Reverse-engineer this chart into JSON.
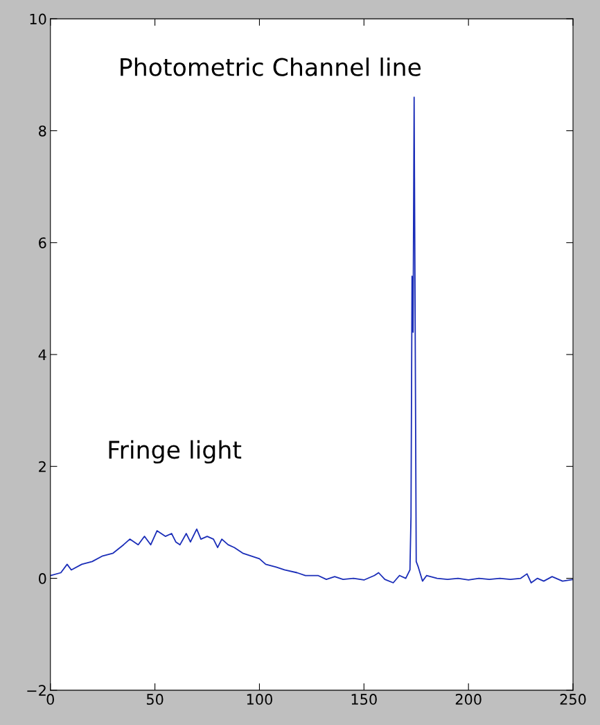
{
  "chart_data": {
    "type": "line",
    "color": "#1a2db8",
    "x": [
      0,
      5,
      8,
      10,
      15,
      20,
      25,
      30,
      35,
      38,
      42,
      45,
      48,
      51,
      55,
      58,
      60,
      62,
      65,
      67,
      70,
      72,
      75,
      78,
      80,
      82,
      85,
      88,
      92,
      96,
      100,
      103,
      108,
      112,
      118,
      122,
      128,
      132,
      136,
      140,
      145,
      150,
      155,
      157,
      160,
      164,
      167,
      170,
      172,
      172.5,
      173,
      173.5,
      174,
      174.5,
      175,
      176,
      178,
      180,
      185,
      190,
      195,
      200,
      205,
      210,
      215,
      220,
      225,
      228,
      230,
      233,
      236,
      240,
      245,
      250
    ],
    "values": [
      0.05,
      0.1,
      0.25,
      0.15,
      0.25,
      0.3,
      0.4,
      0.45,
      0.6,
      0.7,
      0.6,
      0.75,
      0.6,
      0.85,
      0.75,
      0.8,
      0.65,
      0.6,
      0.8,
      0.65,
      0.88,
      0.7,
      0.75,
      0.7,
      0.55,
      0.7,
      0.6,
      0.55,
      0.45,
      0.4,
      0.35,
      0.25,
      0.2,
      0.15,
      0.1,
      0.05,
      0.05,
      -0.02,
      0.03,
      -0.02,
      0.0,
      -0.03,
      0.05,
      0.1,
      -0.02,
      -0.08,
      0.05,
      0.0,
      0.15,
      1.1,
      5.4,
      4.4,
      8.6,
      4.5,
      0.3,
      0.2,
      -0.05,
      0.05,
      0.0,
      -0.02,
      0.0,
      -0.03,
      0.0,
      -0.02,
      0.0,
      -0.02,
      0.0,
      0.08,
      -0.08,
      0.0,
      -0.05,
      0.03,
      -0.05,
      -0.02
    ],
    "xlim": [
      0,
      250
    ],
    "xticks": [
      0,
      50,
      100,
      150,
      200,
      250
    ],
    "ylim": [
      -2,
      10
    ],
    "yticks": [
      {
        "value": -2,
        "label": "−2"
      },
      0,
      2,
      4,
      6,
      8,
      10
    ],
    "grid": false,
    "legend": false,
    "annotations": [
      "Photometric Channel line",
      "Fringe light"
    ]
  }
}
